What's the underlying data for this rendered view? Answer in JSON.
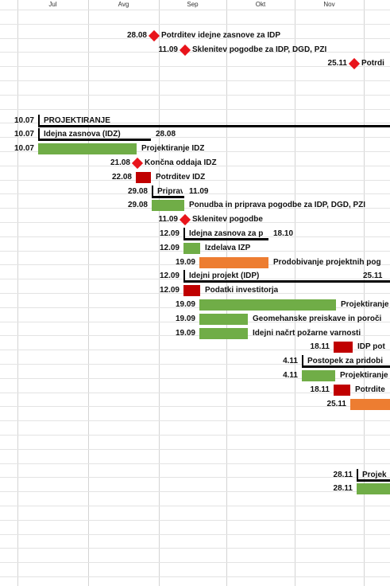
{
  "months": [
    "Jul",
    "Avg",
    "Sep",
    "Okt",
    "Nov"
  ],
  "colors": {
    "task": "#70ad47",
    "pending": "#ed7d31",
    "critical": "#c00000",
    "milestone": "#e8141b",
    "summary": "#000000"
  },
  "items": [
    {
      "type": "milestone",
      "date": "28.08",
      "label": "Potrditev idejne  zasnove za IDP"
    },
    {
      "type": "milestone",
      "date": "11.09",
      "label": "Sklenitev pogodbe za IDP, DGD, PZI"
    },
    {
      "type": "milestone",
      "date": "25.11",
      "label": "Potrdi"
    },
    {
      "type": "summary",
      "date": "10.07",
      "label": "PROJEKTIRANJE"
    },
    {
      "type": "summary",
      "date": "10.07",
      "label": "Idejna zasnova (IDZ)",
      "end_date": "28.08"
    },
    {
      "type": "task",
      "date": "10.07",
      "label": "Projektiranje IDZ"
    },
    {
      "type": "milestone",
      "date": "21.08",
      "label": "Končna oddaja IDZ"
    },
    {
      "type": "critical",
      "date": "22.08",
      "label": "Potrditev IDZ"
    },
    {
      "type": "summary",
      "date": "29.08",
      "label": "Priprav",
      "end_date": "11.09"
    },
    {
      "type": "task",
      "date": "29.08",
      "label": "Ponudba in priprava pogodbe za IDP, DGD, PZI"
    },
    {
      "type": "milestone",
      "date": "11.09",
      "label": "Sklenitev pogodbe"
    },
    {
      "type": "summary",
      "date": "12.09",
      "label": "Idejna zasnova za p",
      "end_date": "18.10"
    },
    {
      "type": "task",
      "date": "12.09",
      "label": "Izdelava IZP"
    },
    {
      "type": "pending",
      "date": "19.09",
      "label": "Prodobivanje projektnih pog"
    },
    {
      "type": "summary",
      "date": "12.09",
      "label": "Idejni projekt (IDP)",
      "end_date": "25.11"
    },
    {
      "type": "critical",
      "date": "12.09",
      "label": "Podatki investitorja"
    },
    {
      "type": "task",
      "date": "19.09",
      "label": "Projektiranje"
    },
    {
      "type": "task",
      "date": "19.09",
      "label": "Geomehanske preiskave in poroči"
    },
    {
      "type": "task",
      "date": "19.09",
      "label": "Idejni načrt požarne varnosti"
    },
    {
      "type": "critical",
      "date": "18.11",
      "label": "IDP pot"
    },
    {
      "type": "summary",
      "date": "4.11",
      "label": "Postopek za pridobi"
    },
    {
      "type": "task",
      "date": "4.11",
      "label": "Projektiranje"
    },
    {
      "type": "critical",
      "date": "18.11",
      "label": "Potrdite"
    },
    {
      "type": "pending",
      "date": "25.11",
      "label": ""
    },
    {
      "type": "summary",
      "date": "28.11",
      "label": "Projek"
    },
    {
      "type": "task",
      "date": "28.11",
      "label": ""
    }
  ]
}
